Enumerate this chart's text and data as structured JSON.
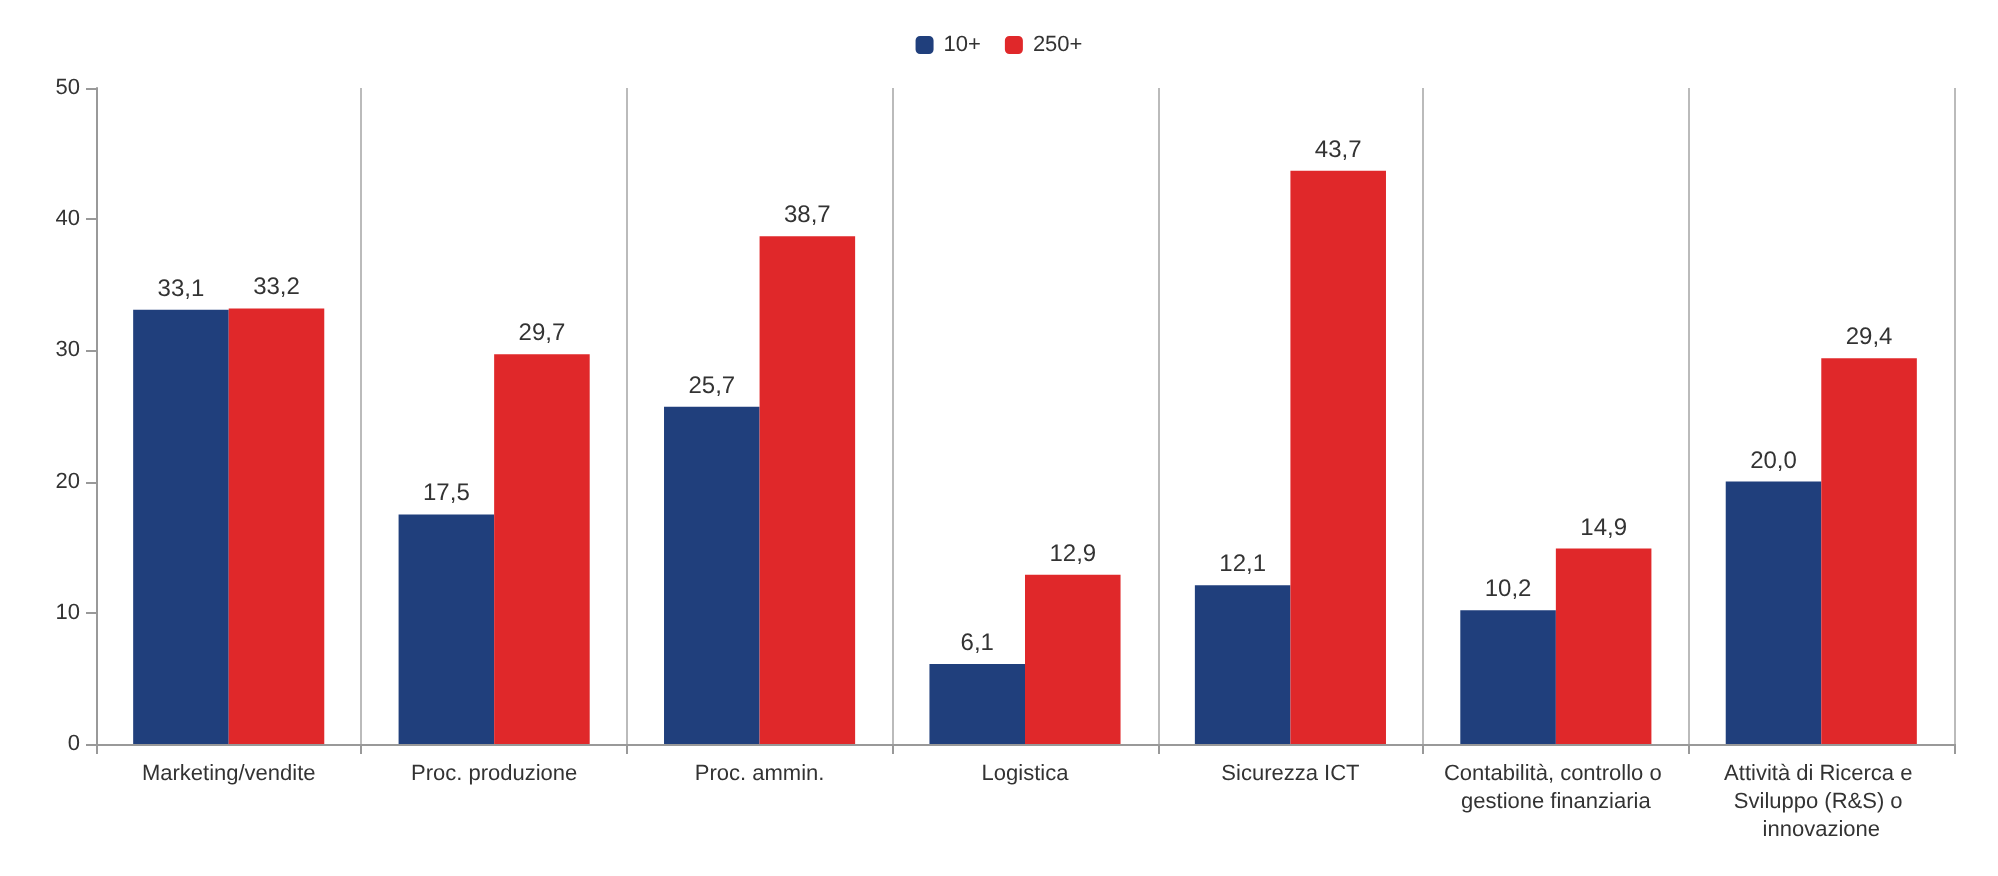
{
  "chart_data": {
    "type": "bar",
    "categories": [
      "Marketing/vendite",
      "Proc. produzione",
      "Proc. ammin.",
      "Logistica",
      "Sicurezza ICT",
      "Contabilità, controllo o gestione finanziaria",
      "Attività di Ricerca e Sviluppo (R&S) o innovazione"
    ],
    "series": [
      {
        "name": "10+",
        "color": "#203f7c",
        "values": [
          33.1,
          17.5,
          25.7,
          6.1,
          12.1,
          10.2,
          20.0
        ],
        "value_labels": [
          "33,1",
          "17,5",
          "25,7",
          "6,1",
          "12,1",
          "10,2",
          "20,0"
        ]
      },
      {
        "name": "250+",
        "color": "#e0282a",
        "values": [
          33.2,
          29.7,
          38.7,
          12.9,
          43.7,
          14.9,
          29.4
        ],
        "value_labels": [
          "33,2",
          "29,7",
          "38,7",
          "12,9",
          "43,7",
          "14,9",
          "29,4"
        ]
      }
    ],
    "ylim": [
      0,
      50
    ],
    "yticks": [
      0,
      10,
      20,
      30,
      40,
      50
    ],
    "grid": "x",
    "legend": "top"
  }
}
